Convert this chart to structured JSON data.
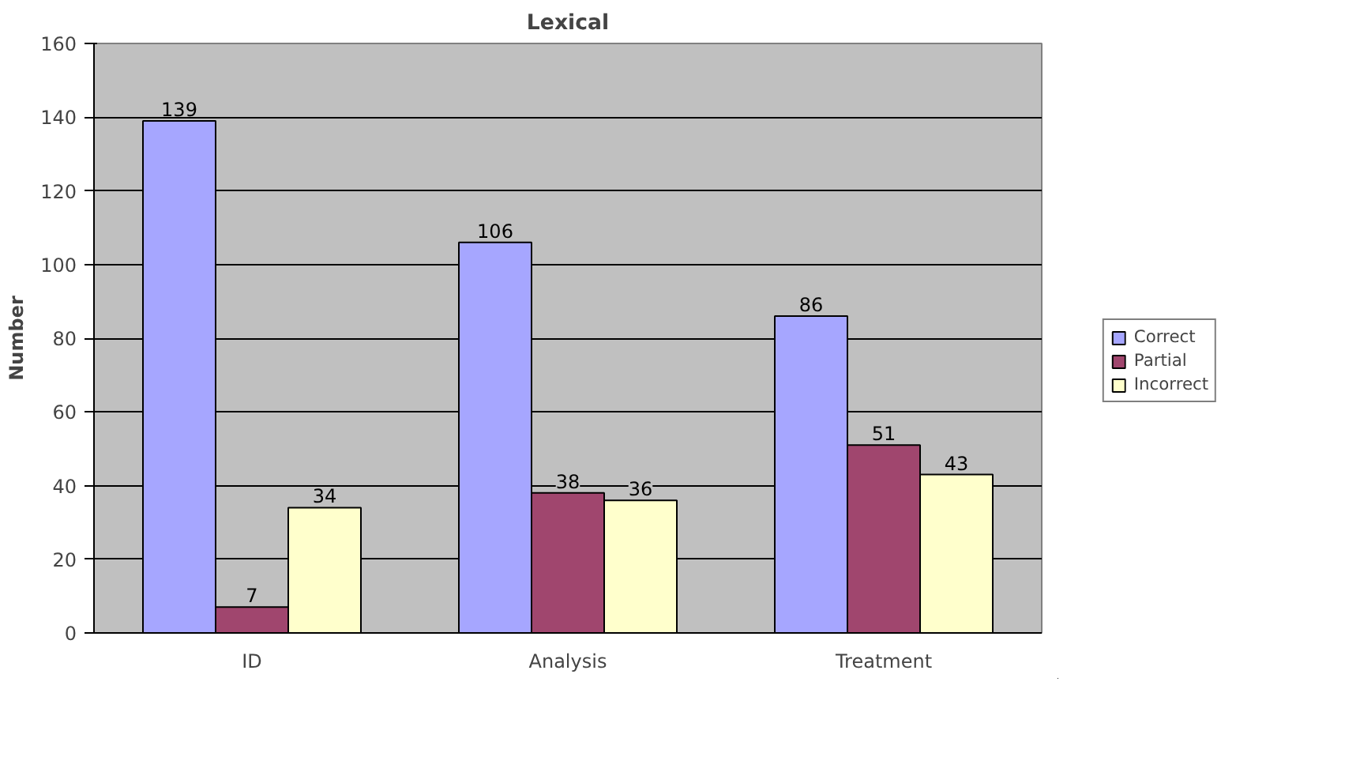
{
  "chart_data": {
    "type": "bar",
    "title": "Lexical",
    "ylabel": "Number",
    "categories": [
      "ID",
      "Analysis",
      "Treatment"
    ],
    "series": [
      {
        "name": "Correct",
        "color": "#a6a6ff",
        "values": [
          139,
          106,
          86
        ]
      },
      {
        "name": "Partial",
        "color": "#a0466e",
        "values": [
          7,
          38,
          51
        ]
      },
      {
        "name": "Incorrect",
        "color": "#ffffcc",
        "values": [
          34,
          36,
          43
        ]
      }
    ],
    "ylim": [
      0,
      160
    ],
    "yticks": [
      0,
      20,
      40,
      60,
      80,
      100,
      120,
      140,
      160
    ],
    "grid": "y",
    "legend": "right",
    "data_labels": true
  }
}
